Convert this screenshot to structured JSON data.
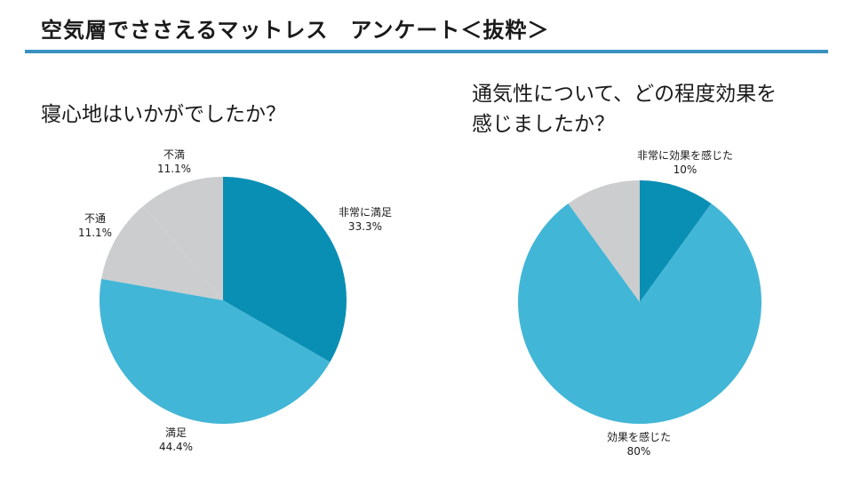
{
  "header": {
    "title": "空気層でささえるマットレス　アンケート＜抜粋＞",
    "rule_color": "#3a91c0"
  },
  "chart_data": [
    {
      "type": "pie",
      "title": "寝心地はいかがでしたか？",
      "slices": [
        {
          "label": "非常に満足",
          "value": 33.3,
          "value_label": "33.3%",
          "color": "#0a8fb4"
        },
        {
          "label": "満足",
          "value": 44.4,
          "value_label": "44.4%",
          "color": "#42b6d6"
        },
        {
          "label": "不通",
          "value": 11.1,
          "value_label": "11.1%",
          "color": "#cbcdcf"
        },
        {
          "label": "不満",
          "value": 11.1,
          "value_label": "11.1%",
          "color": "#cbcdcf"
        }
      ]
    },
    {
      "type": "pie",
      "title_lines": [
        "通気性について、どの程度効果を",
        "感じましたか？"
      ],
      "slices": [
        {
          "label": "非常に効果を感じた",
          "value": 10,
          "value_label": "10%",
          "color": "#0a8fb4"
        },
        {
          "label": "効果を感じた",
          "value": 80,
          "value_label": "80%",
          "color": "#42b6d6"
        },
        {
          "label": "",
          "value": 10,
          "value_label": "",
          "color": "#cbcdcf"
        }
      ]
    }
  ]
}
